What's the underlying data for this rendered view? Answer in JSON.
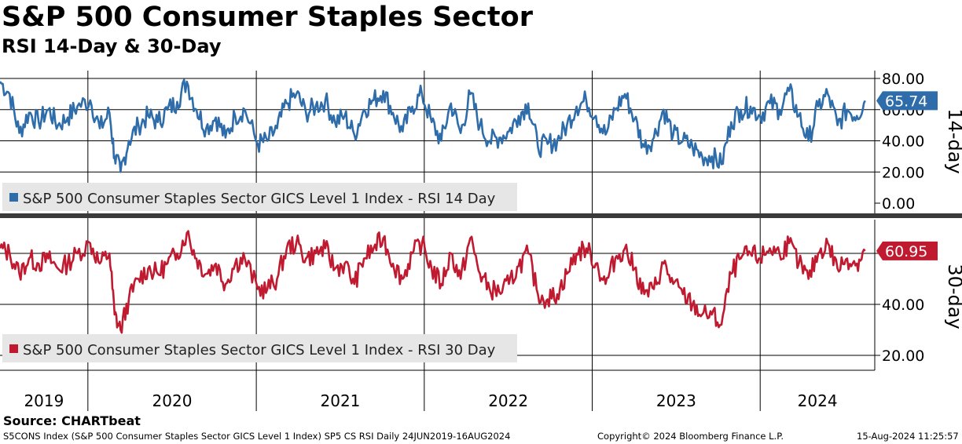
{
  "header": {
    "title": "S&P 500 Consumer Staples Sector",
    "subtitle": "RSI 14-Day & 30-Day"
  },
  "footer": {
    "source": "Source: CHARTbeat",
    "description": "S5CONS Index (S&P 500 Consumer Staples Sector GICS Level 1 Index) SP5 CS RSI  Daily 24JUN2019-16AUG2024",
    "copyright": "Copyright© 2024 Bloomberg Finance L.P.",
    "timestamp": "15-Aug-2024 11:25:57"
  },
  "colors": {
    "rsi14": "#2e6da9",
    "rsi30": "#c01a30",
    "grid": "#000000",
    "divider": "#3a3a3a",
    "legend_bg": "#e6e6e6"
  },
  "chart_data": [
    {
      "type": "line",
      "panel_label": "14-day",
      "legend": "S&P 500 Consumer Staples Sector GICS Level 1 Index - RSI 14 Day",
      "last_value_label": "65.74",
      "last_value": 65.74,
      "y_ticks": [
        0,
        20,
        40,
        60,
        80
      ],
      "y_tick_labels": [
        "0.00",
        "20.00",
        "40.00",
        "60.00",
        "80.00"
      ],
      "ylim": [
        0,
        88
      ],
      "x_range": [
        "2019-06-24",
        "2024-08-16"
      ],
      "series": [
        {
          "name": "S&P 500 Consumer Staples Sector GICS Level 1 Index - RSI 14 Day",
          "x": [
            "2019-06-24",
            "2019-07-15",
            "2019-08-05",
            "2019-08-26",
            "2019-09-16",
            "2019-10-07",
            "2019-10-28",
            "2019-11-18",
            "2019-12-09",
            "2020-01-06",
            "2020-01-27",
            "2020-02-17",
            "2020-02-28",
            "2020-03-12",
            "2020-03-30",
            "2020-04-20",
            "2020-05-11",
            "2020-06-01",
            "2020-06-22",
            "2020-07-13",
            "2020-08-03",
            "2020-08-24",
            "2020-09-14",
            "2020-10-05",
            "2020-10-26",
            "2020-11-16",
            "2020-12-07",
            "2021-01-04",
            "2021-01-25",
            "2021-02-15",
            "2021-03-08",
            "2021-03-29",
            "2021-04-19",
            "2021-05-10",
            "2021-05-31",
            "2021-06-21",
            "2021-07-12",
            "2021-08-02",
            "2021-08-23",
            "2021-09-13",
            "2021-10-04",
            "2021-10-25",
            "2021-11-15",
            "2021-12-06",
            "2021-12-27",
            "2022-01-17",
            "2022-02-07",
            "2022-02-28",
            "2022-03-21",
            "2022-04-11",
            "2022-05-02",
            "2022-05-23",
            "2022-06-13",
            "2022-07-04",
            "2022-07-25",
            "2022-08-15",
            "2022-09-05",
            "2022-09-26",
            "2022-10-17",
            "2022-11-07",
            "2022-11-28",
            "2022-12-19",
            "2023-01-09",
            "2023-01-30",
            "2023-02-20",
            "2023-03-13",
            "2023-04-03",
            "2023-04-24",
            "2023-05-15",
            "2023-06-05",
            "2023-06-26",
            "2023-07-17",
            "2023-08-07",
            "2023-08-28",
            "2023-09-18",
            "2023-10-09",
            "2023-10-30",
            "2023-11-20",
            "2023-12-11",
            "2024-01-01",
            "2024-01-22",
            "2024-02-12",
            "2024-03-04",
            "2024-03-25",
            "2024-04-15",
            "2024-05-06",
            "2024-05-27",
            "2024-06-17",
            "2024-07-08",
            "2024-07-29",
            "2024-08-16"
          ],
          "values": [
            78,
            70,
            45,
            58,
            52,
            60,
            50,
            55,
            62,
            66,
            48,
            58,
            30,
            20,
            40,
            50,
            56,
            52,
            60,
            65,
            78,
            60,
            48,
            55,
            42,
            56,
            60,
            38,
            40,
            48,
            64,
            70,
            58,
            62,
            66,
            52,
            56,
            44,
            60,
            66,
            72,
            58,
            46,
            62,
            70,
            52,
            40,
            64,
            45,
            70,
            50,
            40,
            42,
            46,
            56,
            64,
            36,
            38,
            40,
            50,
            62,
            66,
            56,
            44,
            60,
            70,
            54,
            36,
            42,
            60,
            44,
            40,
            36,
            30,
            30,
            25,
            52,
            60,
            62,
            56,
            64,
            60,
            72,
            56,
            40,
            62,
            70,
            50,
            60,
            56,
            65.74
          ]
        }
      ]
    },
    {
      "type": "line",
      "panel_label": "30-day",
      "legend": "S&P 500 Consumer Staples Sector GICS Level 1 Index - RSI 30 Day",
      "last_value_label": "60.95",
      "last_value": 60.95,
      "y_ticks": [
        20,
        40,
        60
      ],
      "y_tick_labels": [
        "20.00",
        "40.00",
        "60.00"
      ],
      "ylim": [
        18,
        72
      ],
      "x_range": [
        "2019-06-24",
        "2024-08-16"
      ],
      "series": [
        {
          "name": "S&P 500 Consumer Staples Sector GICS Level 1 Index - RSI 30 Day",
          "x": [
            "2019-06-24",
            "2019-07-15",
            "2019-08-05",
            "2019-08-26",
            "2019-09-16",
            "2019-10-07",
            "2019-10-28",
            "2019-11-18",
            "2019-12-09",
            "2020-01-06",
            "2020-01-27",
            "2020-02-17",
            "2020-02-28",
            "2020-03-12",
            "2020-03-30",
            "2020-04-20",
            "2020-05-11",
            "2020-06-01",
            "2020-06-22",
            "2020-07-13",
            "2020-08-03",
            "2020-08-24",
            "2020-09-14",
            "2020-10-05",
            "2020-10-26",
            "2020-11-16",
            "2020-12-07",
            "2021-01-04",
            "2021-01-25",
            "2021-02-15",
            "2021-03-08",
            "2021-03-29",
            "2021-04-19",
            "2021-05-10",
            "2021-05-31",
            "2021-06-21",
            "2021-07-12",
            "2021-08-02",
            "2021-08-23",
            "2021-09-13",
            "2021-10-04",
            "2021-10-25",
            "2021-11-15",
            "2021-12-06",
            "2021-12-27",
            "2022-01-17",
            "2022-02-07",
            "2022-02-28",
            "2022-03-21",
            "2022-04-11",
            "2022-05-02",
            "2022-05-23",
            "2022-06-13",
            "2022-07-04",
            "2022-07-25",
            "2022-08-15",
            "2022-09-05",
            "2022-09-26",
            "2022-10-17",
            "2022-11-07",
            "2022-11-28",
            "2022-12-19",
            "2023-01-09",
            "2023-01-30",
            "2023-02-20",
            "2023-03-13",
            "2023-04-03",
            "2023-04-24",
            "2023-05-15",
            "2023-06-05",
            "2023-06-26",
            "2023-07-17",
            "2023-08-07",
            "2023-08-28",
            "2023-09-18",
            "2023-10-09",
            "2023-10-30",
            "2023-11-20",
            "2023-12-11",
            "2024-01-01",
            "2024-01-22",
            "2024-02-12",
            "2024-03-04",
            "2024-03-25",
            "2024-04-15",
            "2024-05-06",
            "2024-05-27",
            "2024-06-17",
            "2024-07-08",
            "2024-07-29",
            "2024-08-16"
          ],
          "values": [
            62,
            60,
            52,
            58,
            56,
            58,
            54,
            56,
            60,
            64,
            56,
            60,
            36,
            30,
            42,
            50,
            54,
            52,
            56,
            60,
            68,
            58,
            52,
            56,
            48,
            56,
            58,
            46,
            46,
            50,
            62,
            64,
            58,
            60,
            62,
            54,
            56,
            48,
            58,
            62,
            66,
            56,
            50,
            60,
            64,
            54,
            48,
            60,
            50,
            66,
            52,
            46,
            45,
            48,
            55,
            60,
            44,
            42,
            44,
            52,
            60,
            62,
            56,
            48,
            58,
            62,
            54,
            44,
            46,
            56,
            48,
            44,
            40,
            36,
            36,
            32,
            52,
            58,
            60,
            58,
            62,
            60,
            64,
            56,
            50,
            60,
            64,
            54,
            58,
            56,
            60.95
          ]
        }
      ]
    }
  ],
  "x_axis": {
    "year_labels": [
      "2019",
      "2020",
      "2021",
      "2022",
      "2023",
      "2024"
    ]
  }
}
